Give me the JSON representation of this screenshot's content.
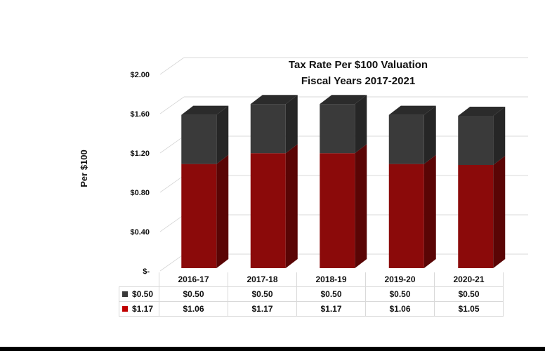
{
  "chart_data": {
    "type": "bar",
    "stacked": true,
    "three_d": true,
    "title": [
      "Tax Rate Per $100 Valuation",
      "Fiscal Years 2017-2021"
    ],
    "xlabel": "",
    "ylabel": "Per $100",
    "ylim": [
      0,
      2.0
    ],
    "yticks": [
      0,
      0.4,
      0.8,
      1.2,
      1.6,
      2.0
    ],
    "ytick_labels": [
      "$-",
      "$0.40",
      "$0.80",
      "$1.20",
      "$1.60",
      "$2.00"
    ],
    "categories": [
      "2016-17",
      "2017-18",
      "2018-19",
      "2019-20",
      "2020-21"
    ],
    "series": [
      {
        "name": "$1.17",
        "color": "#8b0a0a",
        "side_color": "#5a0505",
        "values": [
          1.06,
          1.17,
          1.17,
          1.06,
          1.05
        ],
        "labels": [
          "$1.06",
          "$1.17",
          "$1.17",
          "$1.06",
          "$1.05"
        ]
      },
      {
        "name": "$0.50",
        "color": "#3a3a3a",
        "side_color": "#262626",
        "values": [
          0.5,
          0.5,
          0.5,
          0.5,
          0.5
        ],
        "labels": [
          "$0.50",
          "$0.50",
          "$0.50",
          "$0.50",
          "$0.50"
        ]
      }
    ],
    "grid": true,
    "legend": "data-table"
  }
}
